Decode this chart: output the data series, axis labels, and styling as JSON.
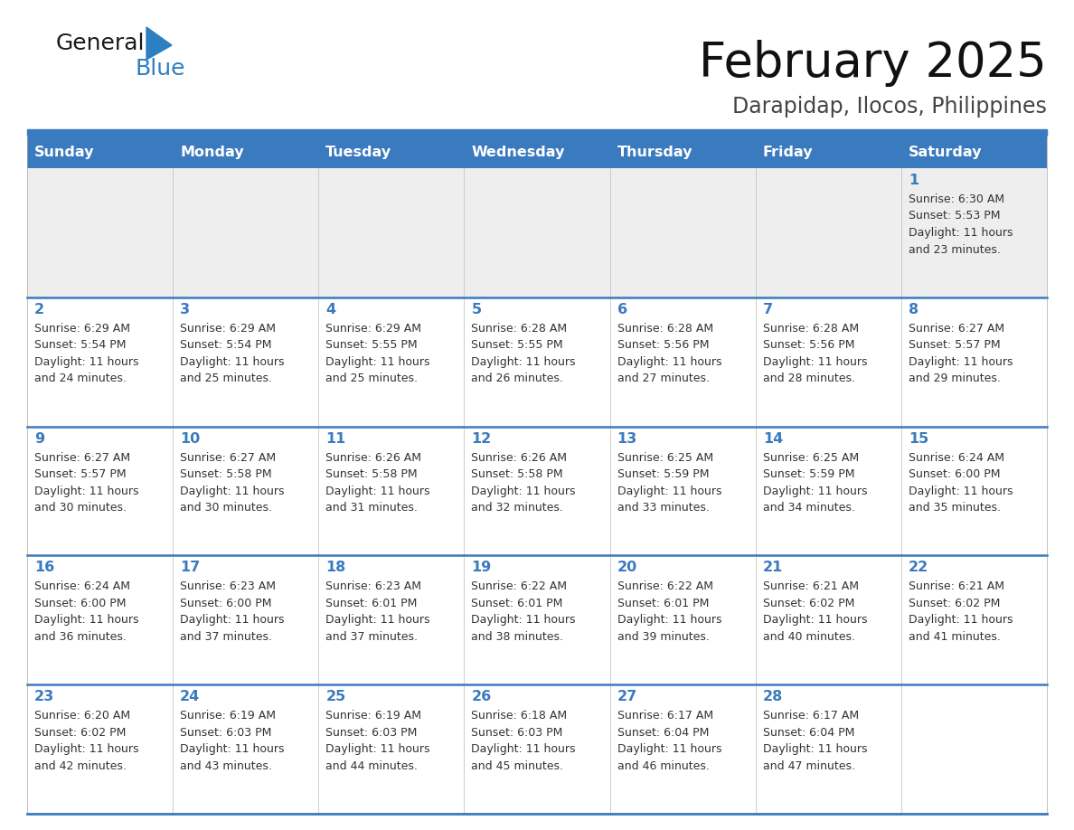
{
  "title": "February 2025",
  "subtitle": "Darapidap, Ilocos, Philippines",
  "days_of_week": [
    "Sunday",
    "Monday",
    "Tuesday",
    "Wednesday",
    "Thursday",
    "Friday",
    "Saturday"
  ],
  "header_bg": "#3a7abf",
  "header_text": "#ffffff",
  "row1_bg": "#eeeeee",
  "row_bg": "#ffffff",
  "separator_color": "#3a7abf",
  "day_num_color": "#3a7abf",
  "cell_text_color": "#333333",
  "logo_general_color": "#1a1a1a",
  "logo_blue_color": "#2e7fc0",
  "calendar_data": [
    [
      null,
      null,
      null,
      null,
      null,
      null,
      {
        "day": 1,
        "sunrise": "6:30 AM",
        "sunset": "5:53 PM",
        "daylight": "11 hours and 23 minutes."
      }
    ],
    [
      {
        "day": 2,
        "sunrise": "6:29 AM",
        "sunset": "5:54 PM",
        "daylight": "11 hours and 24 minutes."
      },
      {
        "day": 3,
        "sunrise": "6:29 AM",
        "sunset": "5:54 PM",
        "daylight": "11 hours and 25 minutes."
      },
      {
        "day": 4,
        "sunrise": "6:29 AM",
        "sunset": "5:55 PM",
        "daylight": "11 hours and 25 minutes."
      },
      {
        "day": 5,
        "sunrise": "6:28 AM",
        "sunset": "5:55 PM",
        "daylight": "11 hours and 26 minutes."
      },
      {
        "day": 6,
        "sunrise": "6:28 AM",
        "sunset": "5:56 PM",
        "daylight": "11 hours and 27 minutes."
      },
      {
        "day": 7,
        "sunrise": "6:28 AM",
        "sunset": "5:56 PM",
        "daylight": "11 hours and 28 minutes."
      },
      {
        "day": 8,
        "sunrise": "6:27 AM",
        "sunset": "5:57 PM",
        "daylight": "11 hours and 29 minutes."
      }
    ],
    [
      {
        "day": 9,
        "sunrise": "6:27 AM",
        "sunset": "5:57 PM",
        "daylight": "11 hours and 30 minutes."
      },
      {
        "day": 10,
        "sunrise": "6:27 AM",
        "sunset": "5:58 PM",
        "daylight": "11 hours and 30 minutes."
      },
      {
        "day": 11,
        "sunrise": "6:26 AM",
        "sunset": "5:58 PM",
        "daylight": "11 hours and 31 minutes."
      },
      {
        "day": 12,
        "sunrise": "6:26 AM",
        "sunset": "5:58 PM",
        "daylight": "11 hours and 32 minutes."
      },
      {
        "day": 13,
        "sunrise": "6:25 AM",
        "sunset": "5:59 PM",
        "daylight": "11 hours and 33 minutes."
      },
      {
        "day": 14,
        "sunrise": "6:25 AM",
        "sunset": "5:59 PM",
        "daylight": "11 hours and 34 minutes."
      },
      {
        "day": 15,
        "sunrise": "6:24 AM",
        "sunset": "6:00 PM",
        "daylight": "11 hours and 35 minutes."
      }
    ],
    [
      {
        "day": 16,
        "sunrise": "6:24 AM",
        "sunset": "6:00 PM",
        "daylight": "11 hours and 36 minutes."
      },
      {
        "day": 17,
        "sunrise": "6:23 AM",
        "sunset": "6:00 PM",
        "daylight": "11 hours and 37 minutes."
      },
      {
        "day": 18,
        "sunrise": "6:23 AM",
        "sunset": "6:01 PM",
        "daylight": "11 hours and 37 minutes."
      },
      {
        "day": 19,
        "sunrise": "6:22 AM",
        "sunset": "6:01 PM",
        "daylight": "11 hours and 38 minutes."
      },
      {
        "day": 20,
        "sunrise": "6:22 AM",
        "sunset": "6:01 PM",
        "daylight": "11 hours and 39 minutes."
      },
      {
        "day": 21,
        "sunrise": "6:21 AM",
        "sunset": "6:02 PM",
        "daylight": "11 hours and 40 minutes."
      },
      {
        "day": 22,
        "sunrise": "6:21 AM",
        "sunset": "6:02 PM",
        "daylight": "11 hours and 41 minutes."
      }
    ],
    [
      {
        "day": 23,
        "sunrise": "6:20 AM",
        "sunset": "6:02 PM",
        "daylight": "11 hours and 42 minutes."
      },
      {
        "day": 24,
        "sunrise": "6:19 AM",
        "sunset": "6:03 PM",
        "daylight": "11 hours and 43 minutes."
      },
      {
        "day": 25,
        "sunrise": "6:19 AM",
        "sunset": "6:03 PM",
        "daylight": "11 hours and 44 minutes."
      },
      {
        "day": 26,
        "sunrise": "6:18 AM",
        "sunset": "6:03 PM",
        "daylight": "11 hours and 45 minutes."
      },
      {
        "day": 27,
        "sunrise": "6:17 AM",
        "sunset": "6:04 PM",
        "daylight": "11 hours and 46 minutes."
      },
      {
        "day": 28,
        "sunrise": "6:17 AM",
        "sunset": "6:04 PM",
        "daylight": "11 hours and 47 minutes."
      },
      null
    ]
  ]
}
